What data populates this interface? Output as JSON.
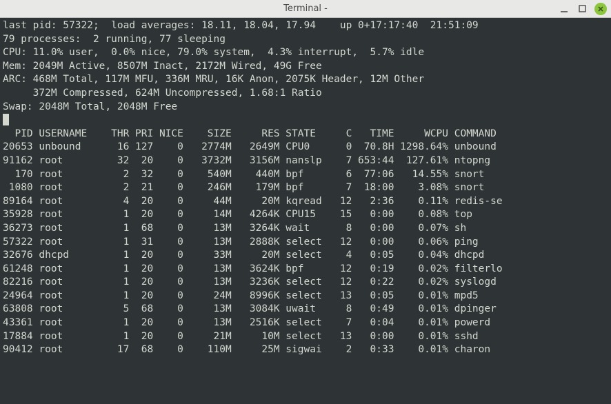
{
  "window": {
    "title": "Terminal -"
  },
  "summary": {
    "last_pid": "57322",
    "load_avg": [
      "18.11",
      "18.04",
      "17.94"
    ],
    "uptime": "0+17:17:40",
    "clock": "21:51:09",
    "processes_total": "79",
    "processes_running": "2",
    "processes_sleeping": "77",
    "cpu_user": "11.0%",
    "cpu_nice": "0.0%",
    "cpu_system": "79.0%",
    "cpu_interrupt": "4.3%",
    "cpu_idle": "5.7%",
    "mem_active": "2049M",
    "mem_inact": "8507M",
    "mem_wired": "2172M",
    "mem_free": "49G",
    "arc_total": "468M",
    "arc_mfu": "117M",
    "arc_mru": "336M",
    "arc_anon": "16K",
    "arc_header": "2075K",
    "arc_other": "12M",
    "arc_compressed": "372M",
    "arc_uncompressed": "624M",
    "arc_ratio": "1.68:1",
    "swap_total": "2048M",
    "swap_free": "2048M"
  },
  "headers": [
    "PID",
    "USERNAME",
    "THR",
    "PRI",
    "NICE",
    "SIZE",
    "RES",
    "STATE",
    "C",
    "TIME",
    "WCPU",
    "COMMAND"
  ],
  "rows": [
    {
      "pid": "20653",
      "user": "unbound",
      "thr": "16",
      "pri": "127",
      "nice": "0",
      "size": "2774M",
      "res": "2649M",
      "state": "CPU0",
      "c": "0",
      "time": "70.8H",
      "wcpu": "1298.64%",
      "cmd": "unbound"
    },
    {
      "pid": "91162",
      "user": "root",
      "thr": "32",
      "pri": "20",
      "nice": "0",
      "size": "3732M",
      "res": "3156M",
      "state": "nanslp",
      "c": "7",
      "time": "653:44",
      "wcpu": "127.61%",
      "cmd": "ntopng"
    },
    {
      "pid": "170",
      "user": "root",
      "thr": "2",
      "pri": "32",
      "nice": "0",
      "size": "540M",
      "res": "440M",
      "state": "bpf",
      "c": "6",
      "time": "77:06",
      "wcpu": "14.55%",
      "cmd": "snort"
    },
    {
      "pid": "1080",
      "user": "root",
      "thr": "2",
      "pri": "21",
      "nice": "0",
      "size": "246M",
      "res": "179M",
      "state": "bpf",
      "c": "7",
      "time": "18:00",
      "wcpu": "3.08%",
      "cmd": "snort"
    },
    {
      "pid": "89164",
      "user": "root",
      "thr": "4",
      "pri": "20",
      "nice": "0",
      "size": "44M",
      "res": "20M",
      "state": "kqread",
      "c": "12",
      "time": "2:36",
      "wcpu": "0.11%",
      "cmd": "redis-se"
    },
    {
      "pid": "35928",
      "user": "root",
      "thr": "1",
      "pri": "20",
      "nice": "0",
      "size": "14M",
      "res": "4264K",
      "state": "CPU15",
      "c": "15",
      "time": "0:00",
      "wcpu": "0.08%",
      "cmd": "top"
    },
    {
      "pid": "36273",
      "user": "root",
      "thr": "1",
      "pri": "68",
      "nice": "0",
      "size": "13M",
      "res": "3264K",
      "state": "wait",
      "c": "8",
      "time": "0:00",
      "wcpu": "0.07%",
      "cmd": "sh"
    },
    {
      "pid": "57322",
      "user": "root",
      "thr": "1",
      "pri": "31",
      "nice": "0",
      "size": "13M",
      "res": "2888K",
      "state": "select",
      "c": "12",
      "time": "0:00",
      "wcpu": "0.06%",
      "cmd": "ping"
    },
    {
      "pid": "32676",
      "user": "dhcpd",
      "thr": "1",
      "pri": "20",
      "nice": "0",
      "size": "33M",
      "res": "20M",
      "state": "select",
      "c": "4",
      "time": "0:05",
      "wcpu": "0.04%",
      "cmd": "dhcpd"
    },
    {
      "pid": "61248",
      "user": "root",
      "thr": "1",
      "pri": "20",
      "nice": "0",
      "size": "13M",
      "res": "3624K",
      "state": "bpf",
      "c": "12",
      "time": "0:19",
      "wcpu": "0.02%",
      "cmd": "filterlo"
    },
    {
      "pid": "82216",
      "user": "root",
      "thr": "1",
      "pri": "20",
      "nice": "0",
      "size": "13M",
      "res": "3236K",
      "state": "select",
      "c": "12",
      "time": "0:22",
      "wcpu": "0.02%",
      "cmd": "syslogd"
    },
    {
      "pid": "24964",
      "user": "root",
      "thr": "1",
      "pri": "20",
      "nice": "0",
      "size": "24M",
      "res": "8996K",
      "state": "select",
      "c": "13",
      "time": "0:05",
      "wcpu": "0.01%",
      "cmd": "mpd5"
    },
    {
      "pid": "63808",
      "user": "root",
      "thr": "5",
      "pri": "68",
      "nice": "0",
      "size": "13M",
      "res": "3084K",
      "state": "uwait",
      "c": "8",
      "time": "0:49",
      "wcpu": "0.01%",
      "cmd": "dpinger"
    },
    {
      "pid": "43361",
      "user": "root",
      "thr": "1",
      "pri": "20",
      "nice": "0",
      "size": "13M",
      "res": "2516K",
      "state": "select",
      "c": "7",
      "time": "0:04",
      "wcpu": "0.01%",
      "cmd": "powerd"
    },
    {
      "pid": "17884",
      "user": "root",
      "thr": "1",
      "pri": "20",
      "nice": "0",
      "size": "21M",
      "res": "10M",
      "state": "select",
      "c": "13",
      "time": "0:00",
      "wcpu": "0.01%",
      "cmd": "sshd"
    },
    {
      "pid": "90412",
      "user": "root",
      "thr": "17",
      "pri": "68",
      "nice": "0",
      "size": "110M",
      "res": "25M",
      "state": "sigwai",
      "c": "2",
      "time": "0:33",
      "wcpu": "0.01%",
      "cmd": "charon"
    }
  ],
  "colwidths": {
    "pid": 5,
    "user": 8,
    "thr": 6,
    "pri": 3,
    "nice": 4,
    "size": 7,
    "res": 7,
    "state": 6,
    "c": 4,
    "time": 6,
    "wcpu": 8,
    "cmd": 10
  },
  "colors": {
    "bg": "#2e3436",
    "fg": "#d3d7cf",
    "titlebar_bg": "#e8e8e6",
    "titlebar_fg": "#4a4a48",
    "close_btn": "#8cc63f"
  }
}
